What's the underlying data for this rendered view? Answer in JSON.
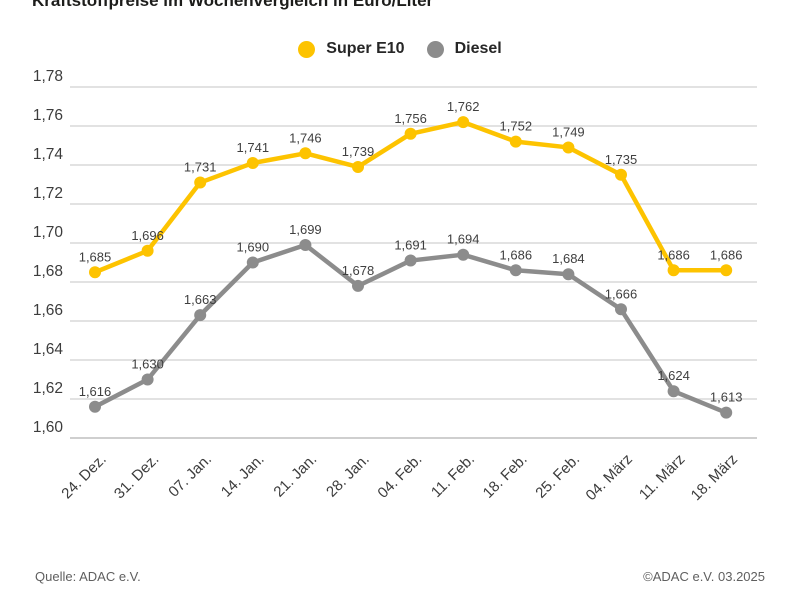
{
  "page": {
    "title": "Kraftstoffpreise im Wochenvergleich in Euro/Liter"
  },
  "footer": {
    "source": "Quelle: ADAC e.V.",
    "copyright": "©ADAC e.V. 03.2025"
  },
  "colors": {
    "super_e10": "#FDC300",
    "diesel": "#8C8C8C",
    "gridline": "#d9d9d9",
    "axis_line": "#cfcfcf",
    "tick_label": "#3c3c3c",
    "data_label": "#3f3f3f"
  },
  "chart_data": {
    "type": "line",
    "title": "Kraftstoffpreise im Wochenvergleich in Euro/Liter",
    "categories": [
      "24. Dez.",
      "31. Dez.",
      "07. Jan.",
      "14. Jan.",
      "21. Jan.",
      "28. Jan.",
      "04. Feb.",
      "11. Feb.",
      "18. Feb.",
      "25. Feb.",
      "04. März",
      "11. März",
      "18. März"
    ],
    "series": [
      {
        "name": "Super E10",
        "color": "#FDC300",
        "values": [
          1.685,
          1.696,
          1.731,
          1.741,
          1.746,
          1.739,
          1.756,
          1.762,
          1.752,
          1.749,
          1.735,
          1.686,
          1.686
        ]
      },
      {
        "name": "Diesel",
        "color": "#8C8C8C",
        "values": [
          1.616,
          1.63,
          1.663,
          1.69,
          1.699,
          1.678,
          1.691,
          1.694,
          1.686,
          1.684,
          1.666,
          1.624,
          1.613
        ]
      }
    ],
    "xlabel": "",
    "ylabel": "Euro/Liter",
    "ylim": [
      1.6,
      1.78
    ],
    "ytick_step": 0.02,
    "grid": "horizontal",
    "legend_position": "top",
    "decimal_separator": ",",
    "data_labels": true
  }
}
